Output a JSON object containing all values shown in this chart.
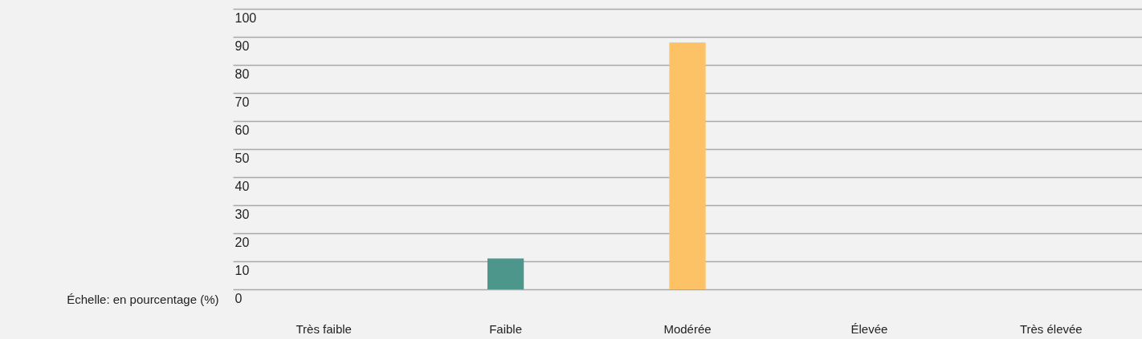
{
  "chart_data": {
    "type": "bar",
    "ylabel": "Échelle: en pourcentage (%)",
    "categories": [
      "Très faible",
      "Faible",
      "Modérée",
      "Élevée",
      "Très élevée"
    ],
    "values": [
      0,
      11,
      88,
      0,
      0
    ],
    "colors": [
      "#4d968b",
      "#4d968b",
      "#fdc166",
      "#4d968b",
      "#4d968b"
    ],
    "ylim": [
      0,
      100
    ],
    "yticks": [
      0,
      10,
      20,
      30,
      40,
      50,
      60,
      70,
      80,
      90,
      100
    ],
    "grid": "y"
  }
}
